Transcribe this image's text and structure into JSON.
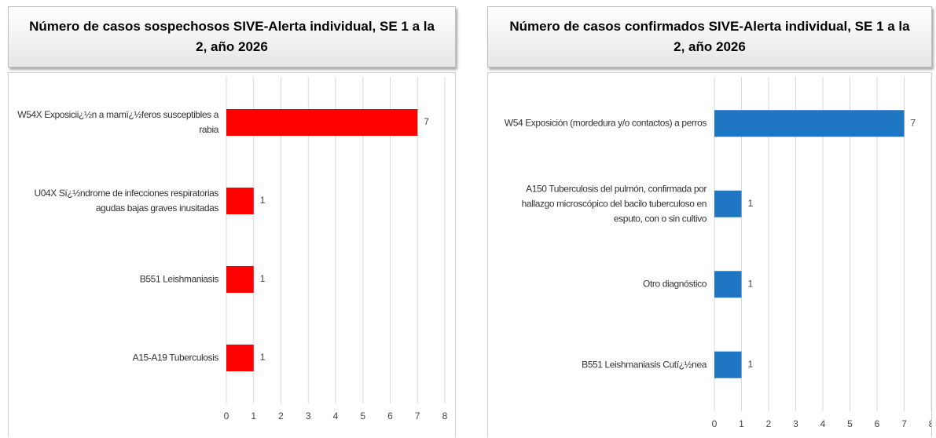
{
  "chart_data": [
    {
      "type": "bar",
      "title": "Número de casos sospechosos SIVE-Alerta individual, SE 1 a la 2, año 2026",
      "categories": [
        "W54X Exposicii¿½n a mamï¿½feros susceptibles a rabia",
        "U04X Sï¿½ndrome de infecciones respiratorias agudas bajas graves inusitadas",
        "B551 Leishmaniasis",
        "A15-A19 Tuberculosis"
      ],
      "values": [
        7,
        1,
        1,
        1
      ],
      "color": "#ff0000",
      "xlim": [
        0,
        8
      ],
      "xticks": [
        0,
        1,
        2,
        3,
        4,
        5,
        6,
        7,
        8
      ],
      "grid": true
    },
    {
      "type": "bar",
      "title": "Número de casos confirmados SIVE-Alerta individual, SE 1 a la 2, año 2026",
      "categories": [
        "W54 Exposición (mordedura y/o contactos) a perros",
        "A150 Tuberculosis del pulmón, confirmada por hallazgo microscópico del bacilo tuberculoso en esputo, con o sin cultivo",
        "Otro diagnóstico",
        "B551 Leishmaniasis Cutï¿½nea"
      ],
      "values": [
        7,
        1,
        1,
        1
      ],
      "color": "#1f77c4",
      "xlim": [
        0,
        8
      ],
      "xticks": [
        0,
        1,
        2,
        3,
        4,
        5,
        6,
        7,
        8
      ],
      "grid": true
    }
  ]
}
